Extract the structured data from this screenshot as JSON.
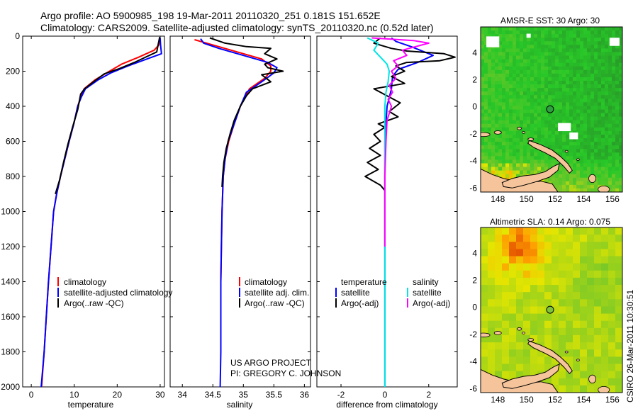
{
  "header": {
    "line1": "Argo profile: AO 5900985_198 19-Mar-2011 20110320_251 0.181S 151.652E",
    "line2": "Climatology: CARS2009. Satellite-adjusted climatology: synTS_20110320.nc (0.52d later)"
  },
  "credit": {
    "line1": "US ARGO PROJECT",
    "line2": "PI: GREGORY C. JOHNSON",
    "side": "CSIRO 26-Mar-2011 10:30:51"
  },
  "colors": {
    "climatology": "#ff0000",
    "satellite": "#0000ff",
    "argo": "#000000",
    "salinity_satellite": "#00e5e5",
    "salinity_argo": "#ff00ff",
    "land": "#f5c49a",
    "coast": "#000000"
  },
  "chart_data": [
    {
      "type": "line",
      "id": "temperature",
      "xlabel": "temperature",
      "ylabel": "",
      "xlim": [
        -2,
        31
      ],
      "ylim": [
        2000,
        0
      ],
      "xticks": [
        0,
        10,
        20,
        30
      ],
      "yticks": [
        0,
        200,
        400,
        600,
        800,
        1000,
        1200,
        1400,
        1600,
        1800,
        2000
      ],
      "legend": [
        "climatology",
        "satellite-adjusted climatology",
        "Argo(..raw -QC)"
      ],
      "series": [
        {
          "name": "climatology",
          "color": "#ff0000",
          "points": [
            [
              29.9,
              10
            ],
            [
              29.7,
              50
            ],
            [
              28.6,
              80
            ],
            [
              25.0,
              120
            ],
            [
              21.0,
              160
            ],
            [
              17.5,
              210
            ],
            [
              14.8,
              250
            ],
            [
              12.3,
              300
            ],
            [
              11.5,
              350
            ],
            [
              10.8,
              400
            ],
            [
              9.9,
              500
            ],
            [
              8.8,
              600
            ],
            [
              7.8,
              700
            ],
            [
              6.8,
              800
            ],
            [
              5.9,
              900
            ],
            [
              5.2,
              1000
            ],
            [
              4.6,
              1200
            ],
            [
              4.0,
              1400
            ],
            [
              3.5,
              1600
            ],
            [
              3.0,
              1800
            ],
            [
              2.4,
              2000
            ]
          ]
        },
        {
          "name": "satellite-adjusted climatology",
          "color": "#0000ff",
          "points": [
            [
              30.0,
              10
            ],
            [
              30.1,
              50
            ],
            [
              30.3,
              100
            ],
            [
              27.5,
              125
            ],
            [
              22.5,
              170
            ],
            [
              18.5,
              210
            ],
            [
              15.5,
              250
            ],
            [
              12.6,
              300
            ],
            [
              11.6,
              350
            ],
            [
              10.8,
              400
            ],
            [
              9.9,
              500
            ],
            [
              8.8,
              600
            ],
            [
              7.8,
              700
            ],
            [
              6.8,
              800
            ],
            [
              5.9,
              900
            ],
            [
              5.2,
              1000
            ],
            [
              4.6,
              1200
            ],
            [
              4.0,
              1400
            ],
            [
              3.5,
              1600
            ],
            [
              3.0,
              1800
            ],
            [
              2.3,
              2000
            ]
          ]
        },
        {
          "name": "Argo(..raw -QC)",
          "color": "#000000",
          "points": [
            [
              29.9,
              5
            ],
            [
              29.6,
              40
            ],
            [
              29.2,
              90
            ],
            [
              27.0,
              115
            ],
            [
              24.0,
              150
            ],
            [
              20.5,
              185
            ],
            [
              17.0,
              215
            ],
            [
              14.5,
              260
            ],
            [
              12.4,
              300
            ],
            [
              11.5,
              330
            ],
            [
              10.8,
              420
            ],
            [
              9.6,
              520
            ],
            [
              8.5,
              620
            ],
            [
              7.5,
              720
            ],
            [
              6.6,
              820
            ],
            [
              5.6,
              900
            ]
          ]
        }
      ]
    },
    {
      "type": "line",
      "id": "salinity",
      "xlabel": "salinity",
      "ylabel": "",
      "xlim": [
        33.8,
        36.1
      ],
      "ylim": [
        2000,
        0
      ],
      "xticks": [
        34,
        34.5,
        35,
        35.5,
        36
      ],
      "legend": [
        "climatology",
        "satellite adj. clim.",
        "Argo(..raw -QC)"
      ],
      "series": [
        {
          "name": "climatology",
          "color": "#ff0000",
          "points": [
            [
              34.2,
              20
            ],
            [
              34.5,
              50
            ],
            [
              34.9,
              90
            ],
            [
              35.3,
              130
            ],
            [
              35.45,
              170
            ],
            [
              35.45,
              200
            ],
            [
              35.35,
              240
            ],
            [
              35.1,
              300
            ],
            [
              34.95,
              400
            ],
            [
              34.85,
              500
            ],
            [
              34.76,
              600
            ],
            [
              34.7,
              700
            ],
            [
              34.67,
              800
            ],
            [
              34.65,
              1000
            ],
            [
              34.64,
              1200
            ],
            [
              34.63,
              1400
            ],
            [
              34.63,
              1600
            ],
            [
              34.63,
              1800
            ]
          ]
        },
        {
          "name": "satellite adj. clim.",
          "color": "#0000ff",
          "points": [
            [
              34.3,
              15
            ],
            [
              34.35,
              40
            ],
            [
              34.6,
              70
            ],
            [
              35.0,
              110
            ],
            [
              35.4,
              150
            ],
            [
              35.55,
              180
            ],
            [
              35.5,
              210
            ],
            [
              35.3,
              260
            ],
            [
              35.05,
              320
            ],
            [
              34.95,
              400
            ],
            [
              34.85,
              500
            ],
            [
              34.75,
              600
            ],
            [
              34.7,
              700
            ],
            [
              34.67,
              800
            ],
            [
              34.65,
              1000
            ],
            [
              34.64,
              1200
            ],
            [
              34.63,
              1400
            ],
            [
              34.63,
              1600
            ],
            [
              34.63,
              1800
            ],
            [
              34.62,
              2000
            ]
          ]
        },
        {
          "name": "Argo(..raw -QC)",
          "color": "#000000",
          "points": [
            [
              34.45,
              10
            ],
            [
              34.7,
              40
            ],
            [
              35.05,
              60
            ],
            [
              35.45,
              70
            ],
            [
              35.35,
              100
            ],
            [
              35.55,
              130
            ],
            [
              35.35,
              160
            ],
            [
              35.4,
              180
            ],
            [
              35.65,
              200
            ],
            [
              35.3,
              220
            ],
            [
              35.45,
              260
            ],
            [
              35.15,
              300
            ],
            [
              35.05,
              340
            ],
            [
              34.95,
              400
            ],
            [
              34.85,
              480
            ],
            [
              34.78,
              560
            ],
            [
              34.72,
              640
            ],
            [
              34.68,
              720
            ],
            [
              34.66,
              800
            ],
            [
              34.65,
              860
            ]
          ]
        }
      ]
    },
    {
      "type": "line",
      "id": "difference",
      "xlabel": "difference from climatology",
      "ylabel": "",
      "xlim": [
        -3.1,
        3.3
      ],
      "ylim": [
        2000,
        0
      ],
      "xticks": [
        -2,
        0,
        2
      ],
      "legend_left": [
        "temperature",
        "satellite",
        "Argo(-adj)"
      ],
      "legend_right": [
        "salinity",
        "satellite",
        "Argo(-adj)"
      ],
      "series": [
        {
          "name": "temperature satellite",
          "color": "#0000ff",
          "points": [
            [
              0.3,
              10
            ],
            [
              0.5,
              30
            ],
            [
              1.2,
              60
            ],
            [
              2.2,
              110
            ],
            [
              1.5,
              150
            ],
            [
              0.6,
              190
            ],
            [
              0.35,
              230
            ],
            [
              0.3,
              300
            ],
            [
              0.1,
              400
            ],
            [
              0,
              600
            ],
            [
              0,
              2000
            ]
          ]
        },
        {
          "name": "temperature Argo(-adj)",
          "color": "#000000",
          "points": [
            [
              -0.2,
              10
            ],
            [
              -0.5,
              40
            ],
            [
              0.3,
              70
            ],
            [
              1.0,
              85
            ],
            [
              2.7,
              100
            ],
            [
              3.2,
              120
            ],
            [
              2.5,
              140
            ],
            [
              1.0,
              150
            ],
            [
              0.5,
              170
            ],
            [
              0.9,
              200
            ],
            [
              0.3,
              230
            ],
            [
              0.9,
              270
            ],
            [
              -0.5,
              300
            ],
            [
              0.7,
              380
            ],
            [
              0.2,
              430
            ],
            [
              0.6,
              460
            ],
            [
              -0.3,
              500
            ],
            [
              0.0,
              520
            ],
            [
              -0.5,
              560
            ],
            [
              -0.2,
              600
            ],
            [
              -0.7,
              640
            ],
            [
              -0.2,
              680
            ],
            [
              -0.8,
              720
            ],
            [
              -0.3,
              760
            ],
            [
              -0.9,
              800
            ],
            [
              -0.2,
              850
            ],
            [
              0.0,
              880
            ]
          ]
        },
        {
          "name": "salinity satellite",
          "color": "#00e5e5",
          "points": [
            [
              -0.8,
              10
            ],
            [
              -0.3,
              40
            ],
            [
              -0.5,
              80
            ],
            [
              -0.2,
              120
            ],
            [
              0.1,
              160
            ],
            [
              0.2,
              200
            ],
            [
              0.15,
              260
            ],
            [
              0.05,
              320
            ],
            [
              0,
              400
            ],
            [
              0,
              2000
            ]
          ]
        },
        {
          "name": "salinity Argo(-adj)",
          "color": "#ff00ff",
          "points": [
            [
              -0.6,
              10
            ],
            [
              1.3,
              25
            ],
            [
              2.0,
              40
            ],
            [
              1.4,
              60
            ],
            [
              0.8,
              80
            ],
            [
              1.0,
              110
            ],
            [
              0.4,
              140
            ],
            [
              0.6,
              170
            ],
            [
              0.3,
              200
            ],
            [
              0.5,
              240
            ],
            [
              0.2,
              280
            ],
            [
              0.35,
              320
            ],
            [
              0.15,
              360
            ],
            [
              0.3,
              400
            ],
            [
              0.1,
              480
            ],
            [
              0.05,
              600
            ],
            [
              0.0,
              800
            ],
            [
              0.0,
              1200
            ]
          ]
        }
      ]
    },
    {
      "type": "heatmap",
      "id": "sst-map",
      "title": "AMSR-E SST: 30 Argo: 30",
      "xlim": [
        146.8,
        156.7
      ],
      "ylim": [
        -6.3,
        5.9
      ],
      "xticks": [
        148,
        150,
        152,
        154,
        156
      ],
      "yticks": [
        -6,
        -4,
        -2,
        0,
        2,
        4
      ],
      "marker": [
        151.65,
        -0.18
      ]
    },
    {
      "type": "heatmap",
      "id": "sla-map",
      "title": "Altimetric SLA: 0.14 Argo: 0.075",
      "xlim": [
        146.8,
        156.7
      ],
      "ylim": [
        -6.3,
        5.9
      ],
      "xticks": [
        148,
        150,
        152,
        154,
        156
      ],
      "yticks": [
        -6,
        -4,
        -2,
        0,
        2,
        4
      ],
      "marker": [
        151.65,
        -0.18
      ]
    }
  ]
}
